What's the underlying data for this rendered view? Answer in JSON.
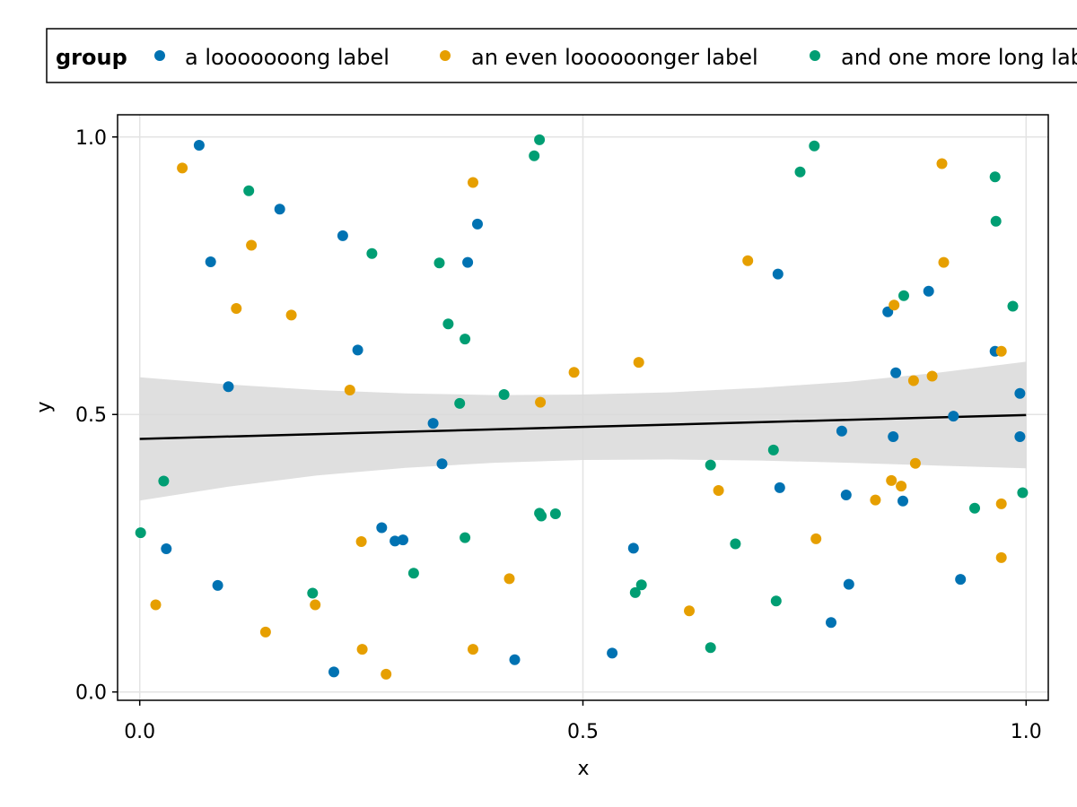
{
  "chart_data": {
    "type": "scatter",
    "xlabel": "x",
    "ylabel": "y",
    "xlim": [
      -0.025,
      1.025
    ],
    "ylim": [
      -0.015,
      1.04
    ],
    "xticks": [
      "0.0",
      "0.5",
      "1.0"
    ],
    "yticks": [
      "0.0",
      "0.5",
      "1.0"
    ],
    "grid": true,
    "legend": {
      "title": "group",
      "position": "top",
      "entries": [
        "a looooooong label",
        "an even loooooonger label",
        "and one more long label"
      ]
    },
    "colors": [
      "#0072b2",
      "#e69f00",
      "#009e73"
    ],
    "band_color": "#d9d9d9",
    "line_color": "#000000",
    "series": [
      {
        "name": "a looooooong label",
        "points": [
          [
            0.067,
            0.985
          ],
          [
            0.158,
            0.87
          ],
          [
            0.08,
            0.775
          ],
          [
            0.229,
            0.822
          ],
          [
            0.1,
            0.55
          ],
          [
            0.246,
            0.616
          ],
          [
            0.03,
            0.258
          ],
          [
            0.088,
            0.192
          ],
          [
            0.219,
            0.036
          ],
          [
            0.273,
            0.296
          ],
          [
            0.288,
            0.272
          ],
          [
            0.297,
            0.274
          ],
          [
            0.331,
            0.484
          ],
          [
            0.341,
            0.411
          ],
          [
            0.37,
            0.774
          ],
          [
            0.381,
            0.843
          ],
          [
            0.423,
            0.058
          ],
          [
            0.533,
            0.07
          ],
          [
            0.557,
            0.259
          ],
          [
            0.72,
            0.753
          ],
          [
            0.722,
            0.368
          ],
          [
            0.78,
            0.125
          ],
          [
            0.792,
            0.47
          ],
          [
            0.797,
            0.355
          ],
          [
            0.8,
            0.194
          ],
          [
            0.844,
            0.685
          ],
          [
            0.85,
            0.46
          ],
          [
            0.853,
            0.575
          ],
          [
            0.861,
            0.344
          ],
          [
            0.89,
            0.722
          ],
          [
            0.918,
            0.497
          ],
          [
            0.926,
            0.203
          ],
          [
            0.965,
            0.614
          ],
          [
            0.993,
            0.538
          ],
          [
            0.993,
            0.46
          ]
        ]
      },
      {
        "name": "an even loooooonger label",
        "points": [
          [
            0.048,
            0.944
          ],
          [
            0.018,
            0.157
          ],
          [
            0.109,
            0.691
          ],
          [
            0.126,
            0.805
          ],
          [
            0.142,
            0.108
          ],
          [
            0.171,
            0.679
          ],
          [
            0.198,
            0.157
          ],
          [
            0.237,
            0.544
          ],
          [
            0.25,
            0.271
          ],
          [
            0.251,
            0.077
          ],
          [
            0.278,
            0.032
          ],
          [
            0.376,
            0.918
          ],
          [
            0.376,
            0.077
          ],
          [
            0.417,
            0.204
          ],
          [
            0.452,
            0.522
          ],
          [
            0.49,
            0.576
          ],
          [
            0.563,
            0.594
          ],
          [
            0.62,
            0.146
          ],
          [
            0.653,
            0.363
          ],
          [
            0.686,
            0.777
          ],
          [
            0.763,
            0.276
          ],
          [
            0.83,
            0.346
          ],
          [
            0.848,
            0.381
          ],
          [
            0.851,
            0.697
          ],
          [
            0.859,
            0.371
          ],
          [
            0.873,
            0.561
          ],
          [
            0.875,
            0.412
          ],
          [
            0.894,
            0.569
          ],
          [
            0.905,
            0.952
          ],
          [
            0.907,
            0.774
          ],
          [
            0.972,
            0.614
          ],
          [
            0.972,
            0.339
          ],
          [
            0.972,
            0.242
          ]
        ]
      },
      {
        "name": "and one more long label",
        "points": [
          [
            0.001,
            0.287
          ],
          [
            0.027,
            0.38
          ],
          [
            0.123,
            0.903
          ],
          [
            0.195,
            0.178
          ],
          [
            0.262,
            0.79
          ],
          [
            0.309,
            0.214
          ],
          [
            0.338,
            0.773
          ],
          [
            0.348,
            0.663
          ],
          [
            0.361,
            0.52
          ],
          [
            0.367,
            0.636
          ],
          [
            0.367,
            0.278
          ],
          [
            0.411,
            0.536
          ],
          [
            0.445,
            0.966
          ],
          [
            0.451,
            0.995
          ],
          [
            0.451,
            0.322
          ],
          [
            0.453,
            0.317
          ],
          [
            0.469,
            0.321
          ],
          [
            0.644,
            0.409
          ],
          [
            0.644,
            0.08
          ],
          [
            0.672,
            0.267
          ],
          [
            0.559,
            0.179
          ],
          [
            0.566,
            0.193
          ],
          [
            0.718,
            0.164
          ],
          [
            0.715,
            0.436
          ],
          [
            0.745,
            0.937
          ],
          [
            0.761,
            0.984
          ],
          [
            0.862,
            0.714
          ],
          [
            0.942,
            0.331
          ],
          [
            0.965,
            0.928
          ],
          [
            0.966,
            0.848
          ],
          [
            0.985,
            0.695
          ],
          [
            0.996,
            0.359
          ]
        ]
      }
    ],
    "fit": {
      "line": [
        [
          0.0,
          0.456
        ],
        [
          1.0,
          0.499
        ]
      ],
      "band_x": [
        0.0,
        0.1,
        0.2,
        0.3,
        0.4,
        0.5,
        0.6,
        0.7,
        0.8,
        0.9,
        1.0
      ],
      "band_upper": [
        0.567,
        0.554,
        0.544,
        0.538,
        0.535,
        0.536,
        0.54,
        0.548,
        0.559,
        0.575,
        0.595
      ],
      "band_lower": [
        0.345,
        0.37,
        0.39,
        0.404,
        0.413,
        0.418,
        0.419,
        0.417,
        0.413,
        0.408,
        0.403
      ]
    }
  }
}
